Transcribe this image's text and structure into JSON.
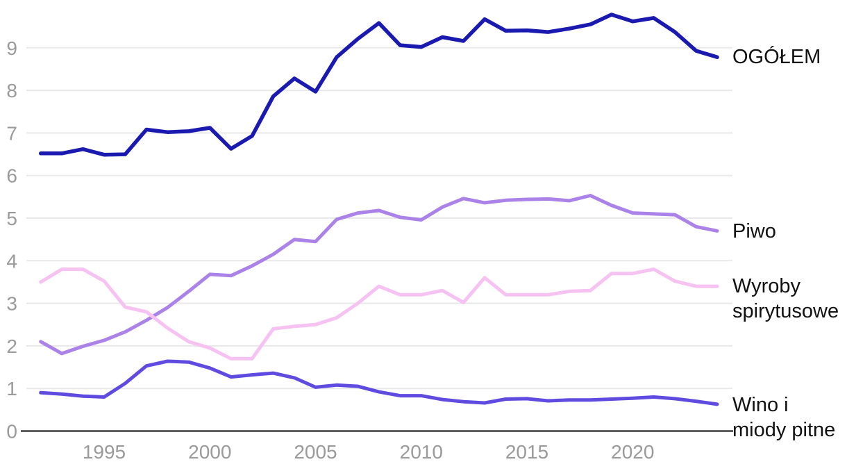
{
  "chart_data": {
    "type": "line",
    "title": "",
    "xlabel": "",
    "ylabel": "",
    "x_ticks": [
      1995,
      2000,
      2005,
      2010,
      2015,
      2020
    ],
    "y_ticks": [
      0,
      1,
      2,
      3,
      4,
      5,
      6,
      7,
      8,
      9
    ],
    "xlim": [
      1992,
      2024.3
    ],
    "ylim": [
      0,
      10
    ],
    "grid": "horizontal",
    "legend_position": "right-end-of-line",
    "years": [
      1992,
      1993,
      1994,
      1995,
      1996,
      1997,
      1998,
      1999,
      2000,
      2001,
      2002,
      2003,
      2004,
      2005,
      2006,
      2007,
      2008,
      2009,
      2010,
      2011,
      2012,
      2013,
      2014,
      2015,
      2016,
      2017,
      2018,
      2019,
      2020,
      2021,
      2022,
      2023,
      2024
    ],
    "series": [
      {
        "name": "ogolem",
        "label_lines": [
          "OGÓŁEM"
        ],
        "color": "#1a1ab0",
        "values": [
          6.52,
          6.52,
          6.62,
          6.49,
          6.5,
          7.08,
          7.02,
          7.04,
          7.12,
          6.63,
          6.93,
          7.86,
          8.28,
          7.97,
          8.78,
          9.21,
          9.58,
          9.06,
          9.02,
          9.25,
          9.16,
          9.67,
          9.4,
          9.41,
          9.37,
          9.45,
          9.55,
          9.78,
          9.62,
          9.7,
          9.37,
          8.93,
          8.78
        ]
      },
      {
        "name": "piwo",
        "label_lines": [
          "Piwo"
        ],
        "color": "#aa82e8",
        "values": [
          2.1,
          1.82,
          1.99,
          2.13,
          2.33,
          2.6,
          2.9,
          3.28,
          3.68,
          3.65,
          3.88,
          4.15,
          4.5,
          4.45,
          4.97,
          5.12,
          5.18,
          5.02,
          4.96,
          5.26,
          5.46,
          5.36,
          5.42,
          5.44,
          5.45,
          5.41,
          5.53,
          5.3,
          5.12,
          5.1,
          5.08,
          4.8,
          4.7
        ]
      },
      {
        "name": "wyroby-spirytusowe",
        "label_lines": [
          "Wyroby",
          "spirytusowe"
        ],
        "color": "#f6c2f1",
        "values": [
          3.5,
          3.8,
          3.8,
          3.52,
          2.91,
          2.8,
          2.42,
          2.1,
          1.95,
          1.7,
          1.7,
          2.4,
          2.46,
          2.5,
          2.66,
          3.0,
          3.4,
          3.2,
          3.2,
          3.3,
          3.02,
          3.6,
          3.2,
          3.2,
          3.2,
          3.28,
          3.3,
          3.7,
          3.7,
          3.8,
          3.52,
          3.4,
          3.4
        ]
      },
      {
        "name": "wino-i-miody-pitne",
        "label_lines": [
          "Wino i",
          "miody pitne"
        ],
        "color": "#5f4be0",
        "values": [
          0.9,
          0.87,
          0.82,
          0.8,
          1.12,
          1.53,
          1.64,
          1.62,
          1.48,
          1.27,
          1.32,
          1.36,
          1.25,
          1.03,
          1.08,
          1.05,
          0.92,
          0.83,
          0.83,
          0.74,
          0.69,
          0.66,
          0.75,
          0.76,
          0.71,
          0.73,
          0.73,
          0.75,
          0.77,
          0.8,
          0.76,
          0.7,
          0.63
        ]
      }
    ],
    "colors": {
      "grid_line": "#e8e8e8",
      "axis_line": "#3d3d3d",
      "tick_label": "#9a9a9a",
      "series_label_text": "#111111",
      "background": "#ffffff"
    }
  }
}
